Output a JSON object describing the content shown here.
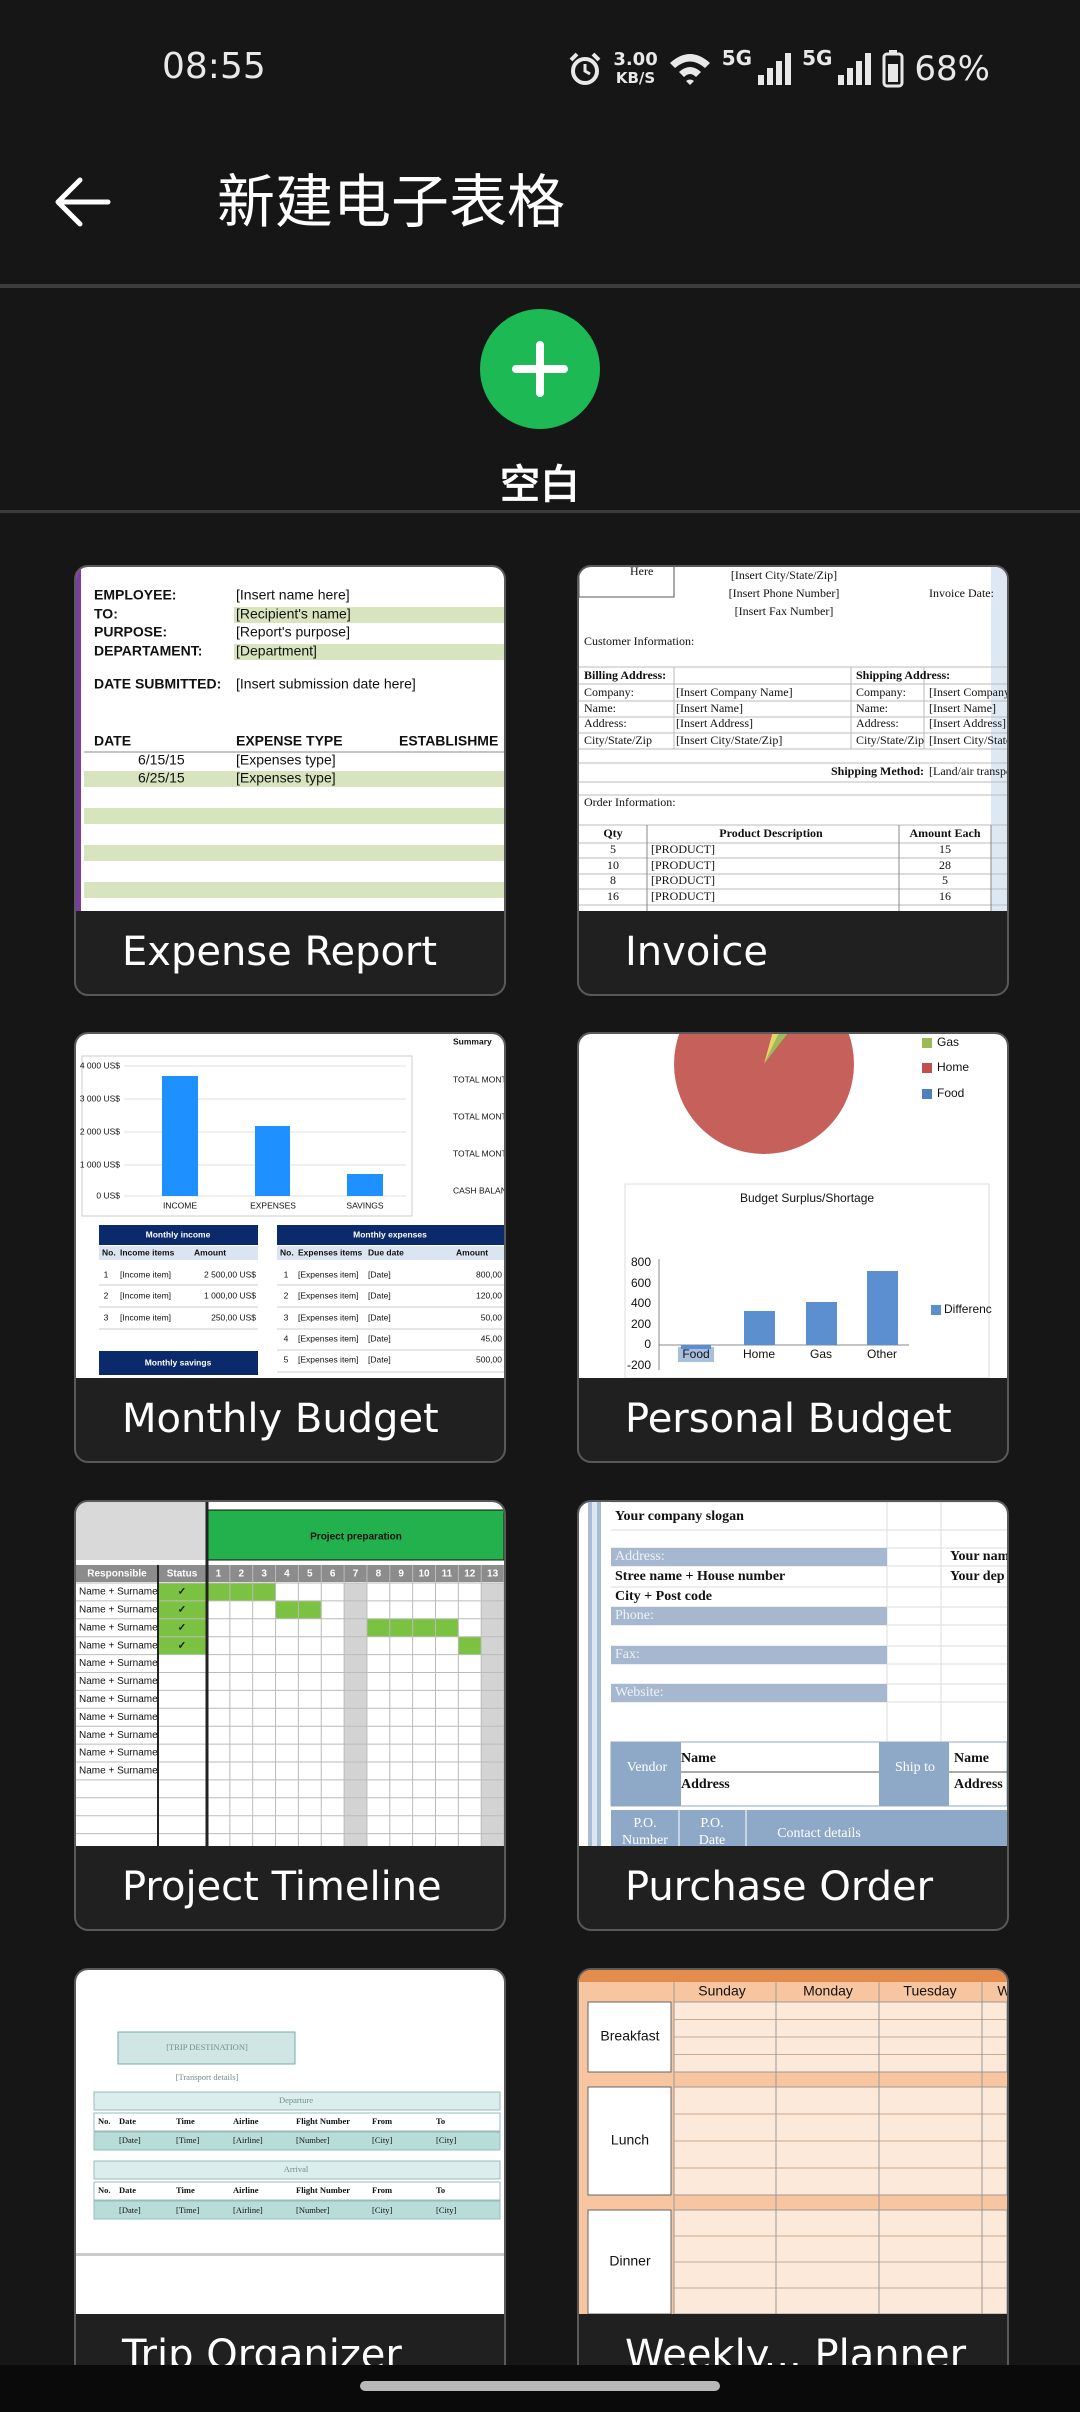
{
  "status_bar": {
    "time": "08:55",
    "speed": "3.00",
    "speed_unit": "KB/S",
    "network_1": "5G",
    "network_2": "5G",
    "battery": "68%"
  },
  "toolbar": {
    "title": "新建电子表格"
  },
  "blank": {
    "label": "空白"
  },
  "templates": [
    {
      "name": "Expense Report",
      "preview": [
        "EMPLOYEE:",
        "[Insert name here]",
        "TO:",
        "[Recipient's name]",
        "PURPOSE:",
        "[Report's purpose]",
        "DEPARTAMENT:",
        "[Department]",
        "DATE SUBMITTED:",
        "[Insert submission date here]",
        "DATE",
        "EXPENSE TYPE",
        "ESTABLISHME",
        "6/15/15",
        "[Expenses type]",
        "6/25/15",
        "[Expenses type]"
      ]
    },
    {
      "name": "Invoice",
      "preview": [
        "Here",
        "[Insert City/State/Zip]",
        "[Insert Phone Number]",
        "[Insert Fax Number]",
        "Invoice Date:",
        "Customer Information:",
        "Billing Address:",
        "Shipping Address:",
        "Company:",
        "[Insert Company Name]",
        "Company:",
        "[Insert Company",
        "Name:",
        "[Insert Name]",
        "Name:",
        "[Insert Name]",
        "Address:",
        "[Insert Address]",
        "Address:",
        "[Insert Address]",
        "City/State/Zip",
        "[Insert City/State/Zip]",
        "City/State/Zip",
        "[Insert City/State",
        "Shipping Method:",
        "[Land/air transpo",
        "Order Information:",
        "Qty",
        "Product Description",
        "Amount Each",
        "5",
        "[PRODUCT]",
        "15",
        "10",
        "[PRODUCT]",
        "28",
        "8",
        "[PRODUCT]",
        "5",
        "16",
        "[PRODUCT]",
        "16"
      ]
    },
    {
      "name": "Monthly Budget",
      "preview": [
        "Summary",
        "TOTAL MONTHL",
        "TOTAL MONTHL",
        "TOTAL MONTHL",
        "CASH BALANC",
        "4 000 US$",
        "3 000 US$",
        "2 000 US$",
        "1 000 US$",
        "0 US$",
        "INCOME",
        "EXPENSES",
        "SAVINGS",
        "Monthly income",
        "Monthly expenses",
        "No.",
        "Income items",
        "Amount",
        "1",
        "[Income item]",
        "2 500,00 US$",
        "2",
        "[Income item]",
        "1 000,00 US$",
        "3",
        "[Income item]",
        "250,00 US$",
        "No.",
        "Expenses items",
        "Due date",
        "Amount",
        "1",
        "[Expenses item]",
        "[Date]",
        "800,00",
        "2",
        "[Expenses item]",
        "[Date]",
        "120,00",
        "3",
        "[Expenses item]",
        "[Date]",
        "50,00",
        "4",
        "[Expenses item]",
        "[Date]",
        "45,00",
        "5",
        "[Expenses item]",
        "[Date]",
        "500,00",
        "Monthly savings"
      ]
    },
    {
      "name": "Personal Budget",
      "preview": [
        "Gas",
        "Home",
        "Food",
        "Budget Surplus/Shortage",
        "800",
        "600",
        "400",
        "200",
        "0",
        "-200",
        "Food",
        "Home",
        "Gas",
        "Other",
        "Differenc"
      ]
    },
    {
      "name": "Project Timeline",
      "preview": [
        "Project preparation",
        "Responsible",
        "Status",
        "1",
        "2",
        "3",
        "4",
        "5",
        "6",
        "7",
        "8",
        "9",
        "10",
        "11",
        "12",
        "13",
        "Name + Surname",
        "Name + Surname",
        "Name + Surname",
        "Name + Surname",
        "Name + Surname",
        "Name + Surname",
        "Name + Surname",
        "Name + Surname",
        "Name + Surname",
        "Name + Surname",
        "Name + Surname",
        "✓",
        "✓",
        "✓",
        "✓"
      ]
    },
    {
      "name": "Purchase Order",
      "preview": [
        "Your company slogan",
        "Address:",
        "Stree name + House number",
        "City + Post code",
        "Phone:",
        "Fax:",
        "Website:",
        "Your nam",
        "Your dep",
        "Vendor",
        "Name",
        "Address",
        "Ship to",
        "Name",
        "Address",
        "P.O.",
        "Number",
        "P.O.",
        "Date",
        "Contact details"
      ]
    },
    {
      "name": "Trip Organizer",
      "preview": [
        "[TRIP DESTINATION]",
        "[Transport details]",
        "Departure",
        "No.",
        "Date",
        "Time",
        "Airline",
        "Flight Number",
        "From",
        "To",
        "[Date]",
        "[Time]",
        "[Airline]",
        "[Number]",
        "[City]",
        "[City]",
        "Arrival",
        "No.",
        "Date",
        "Time",
        "Airline",
        "Flight Number",
        "From",
        "To",
        "[Date]",
        "[Time]",
        "[Airline]",
        "[Number]",
        "[City]",
        "[City]"
      ]
    },
    {
      "name": "Weekly... Planner",
      "preview": [
        "Sunday",
        "Monday",
        "Tuesday",
        "W",
        "Breakfast",
        "Lunch",
        "Dinner"
      ]
    }
  ]
}
